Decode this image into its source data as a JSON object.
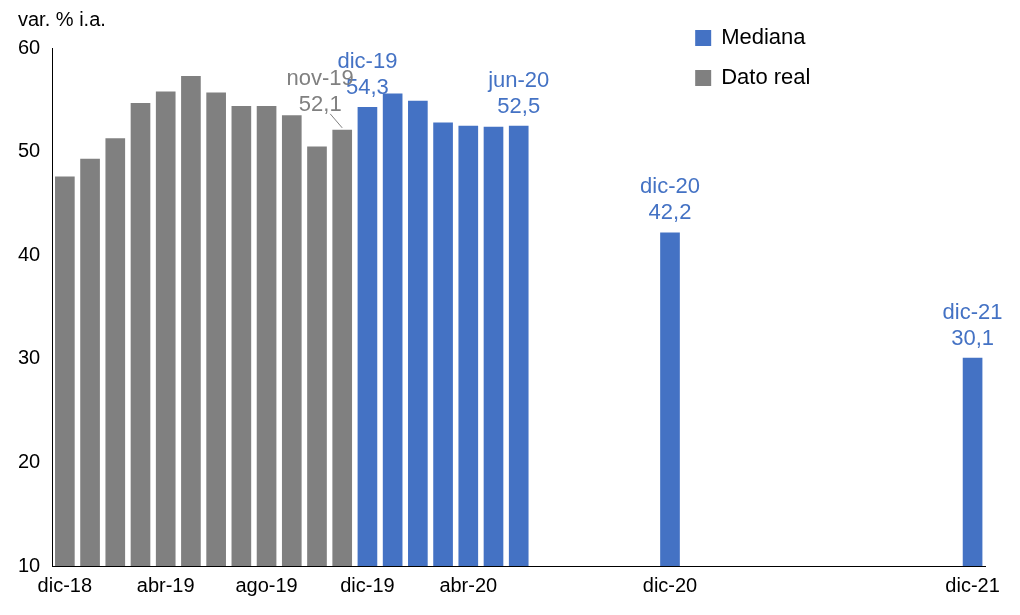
{
  "chart_data": {
    "type": "bar",
    "ylabel": "var. % i.a.",
    "categories": [
      "dic-18",
      null,
      null,
      null,
      "abr-19",
      null,
      null,
      null,
      "ago-19",
      null,
      null,
      null,
      "dic-19",
      null,
      null,
      null,
      "abr-20",
      null,
      null,
      null,
      null,
      null,
      null,
      null,
      "dic-20",
      null,
      null,
      null,
      null,
      null,
      null,
      null,
      null,
      null,
      null,
      null,
      "dic-21"
    ],
    "series": [
      {
        "name": "Mediana",
        "color": "#4472c4",
        "values": [
          null,
          null,
          null,
          null,
          null,
          null,
          null,
          null,
          null,
          null,
          null,
          null,
          54.3,
          55.6,
          54.9,
          52.8,
          52.5,
          52.4,
          52.5,
          null,
          null,
          null,
          null,
          null,
          42.2,
          null,
          null,
          null,
          null,
          null,
          null,
          null,
          null,
          null,
          null,
          null,
          30.1
        ],
        "value_labels": [
          null,
          null,
          null,
          null,
          null,
          null,
          null,
          null,
          null,
          null,
          null,
          null,
          "dic-19\n54,3",
          null,
          null,
          null,
          null,
          null,
          "jun-20\n52,5",
          null,
          null,
          null,
          null,
          null,
          "dic-20\n42,2",
          null,
          null,
          null,
          null,
          null,
          null,
          null,
          null,
          null,
          null,
          null,
          "dic-21\n30,1"
        ]
      },
      {
        "name": "Dato real",
        "color": "#808080",
        "values": [
          47.6,
          49.3,
          51.3,
          54.7,
          55.8,
          57.3,
          55.7,
          54.4,
          54.4,
          53.5,
          50.5,
          52.1,
          null,
          null,
          null,
          null,
          null,
          null,
          null,
          null,
          null,
          null,
          null,
          null,
          null,
          null,
          null,
          null,
          null,
          null,
          null,
          null,
          null,
          null,
          null,
          null,
          null
        ],
        "value_labels": [
          null,
          null,
          null,
          null,
          null,
          null,
          null,
          null,
          null,
          null,
          null,
          "nov-19\n52,1",
          null,
          null,
          null,
          null,
          null,
          null,
          null,
          null,
          null,
          null,
          null,
          null,
          null,
          null,
          null,
          null,
          null,
          null,
          null,
          null,
          null,
          null,
          null,
          null,
          null
        ]
      }
    ],
    "ylim": [
      10,
      60
    ],
    "yticks": [
      10,
      20,
      30,
      40,
      50,
      60
    ],
    "grid": false,
    "legend": "top right"
  }
}
